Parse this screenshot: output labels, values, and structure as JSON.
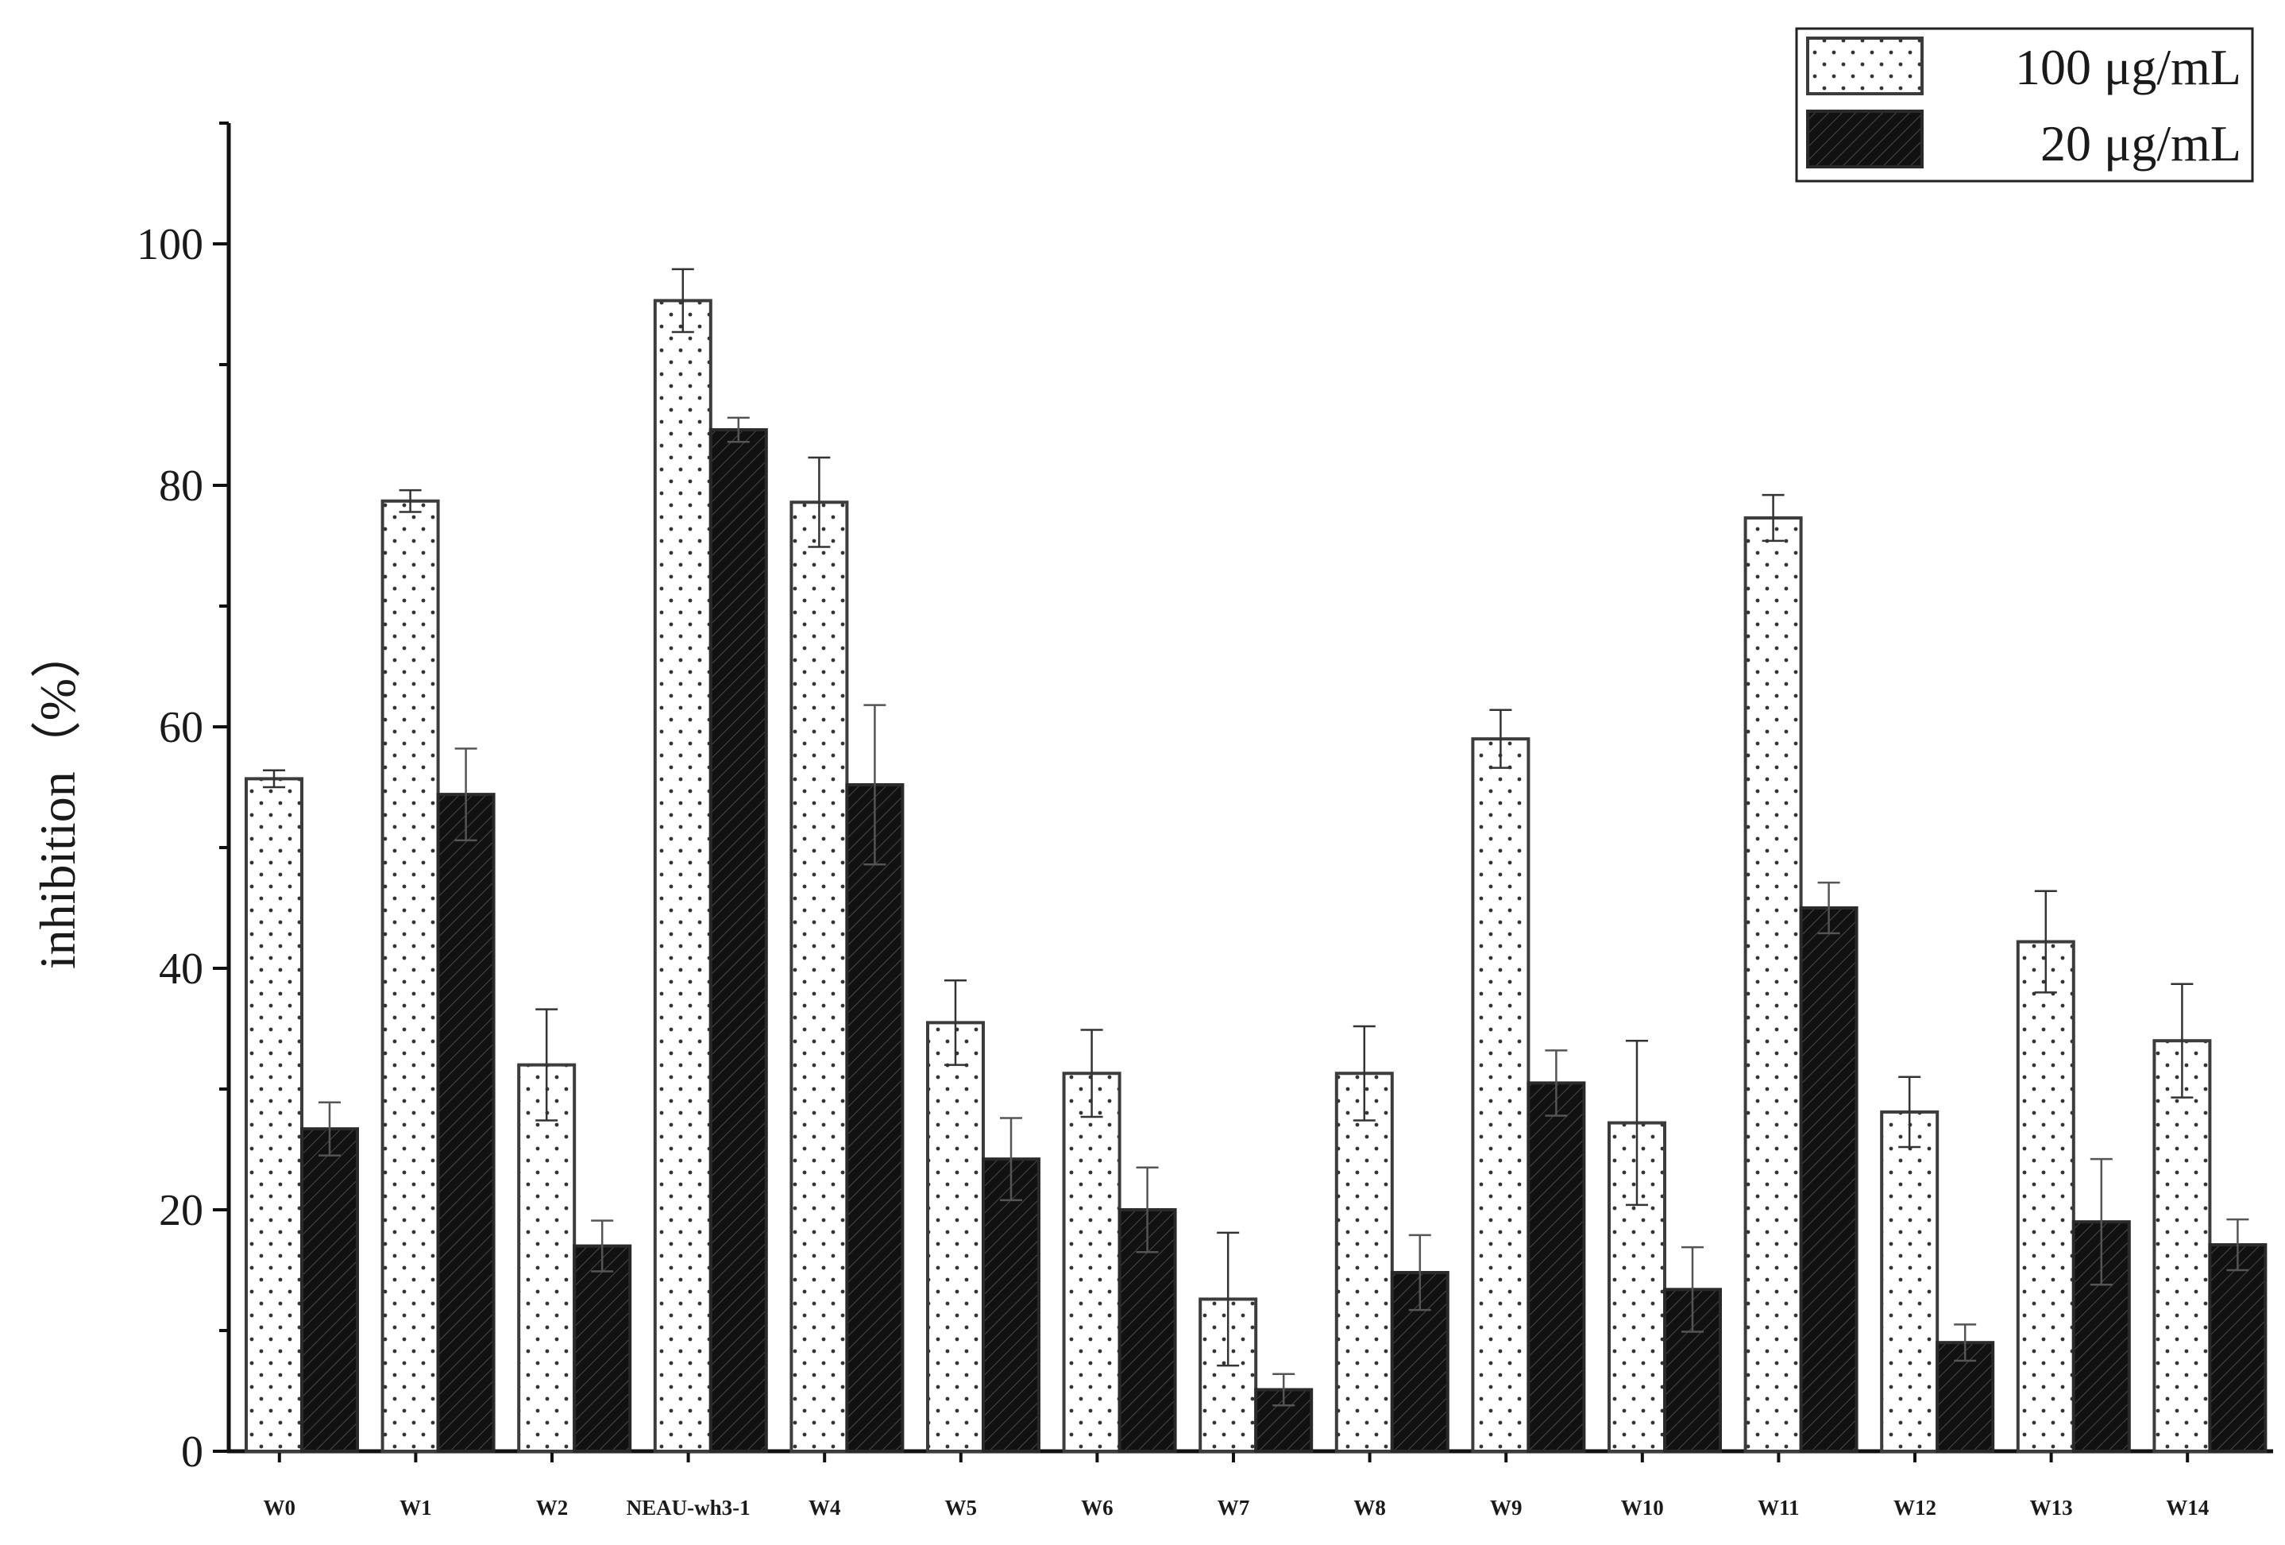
{
  "chart_data": {
    "type": "bar",
    "title": "",
    "xlabel": "",
    "ylabel": "inhibition（%）",
    "ylim": [
      0,
      110
    ],
    "yticks": [
      0,
      20,
      40,
      60,
      80,
      100
    ],
    "ytick_labels": [
      "0",
      "20",
      "40",
      "60",
      "80",
      "100"
    ],
    "grid": false,
    "legend_position": "top-right",
    "categories": [
      "W0",
      "W1",
      "W2",
      "NEAU-wh3-1",
      "W4",
      "W5",
      "W6",
      "W7",
      "W8",
      "W9",
      "W10",
      "W11",
      "W12",
      "W13",
      "W14"
    ],
    "series": [
      {
        "name": "100 μg/mL",
        "pattern": "dots",
        "fill": "#ffffff",
        "stroke": "#3c3c3c",
        "values": [
          55.7,
          78.7,
          32.0,
          95.3,
          78.6,
          35.5,
          31.3,
          12.6,
          31.3,
          59.0,
          27.2,
          77.3,
          28.1,
          42.2,
          34.0
        ],
        "errors": [
          0.7,
          0.9,
          4.6,
          2.6,
          3.7,
          3.5,
          3.6,
          5.5,
          3.9,
          2.4,
          6.8,
          1.9,
          2.9,
          4.2,
          4.7
        ]
      },
      {
        "name": "20 μg/mL",
        "pattern": "hatch",
        "fill": "#111111",
        "stroke": "#2a2a2a",
        "values": [
          26.7,
          54.4,
          17.0,
          84.6,
          55.2,
          24.2,
          20.0,
          5.1,
          14.8,
          30.5,
          13.4,
          45.0,
          9.0,
          19.0,
          17.1
        ],
        "errors": [
          2.2,
          3.8,
          2.1,
          1.0,
          6.6,
          3.4,
          3.5,
          1.3,
          3.1,
          2.7,
          3.5,
          2.1,
          1.5,
          5.2,
          2.1
        ]
      }
    ]
  }
}
